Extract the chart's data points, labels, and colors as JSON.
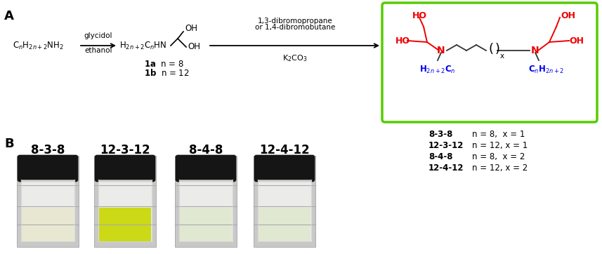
{
  "background_color": "#ffffff",
  "green_box_color": "#55cc00",
  "red_color": "#ee0000",
  "blue_color": "#0000ee",
  "black_color": "#000000",
  "dark_gray": "#333333",
  "arrow1_top": "glycidol",
  "arrow1_bot": "ethanol",
  "arrow2_line1": "1,3-dibromopropane",
  "arrow2_line2": "or 1,4-dibromobutane",
  "arrow2_line3": "K$_2$CO$_3$",
  "vial_labels": [
    "8-3-8",
    "12-3-12",
    "8-4-8",
    "12-4-12"
  ],
  "vial1_liquid": "#e8e8d0",
  "vial2_liquid": "#c8d800",
  "vial3_liquid": "#e0e8d0",
  "vial4_liquid": "#e0e8d0",
  "table_lines_bold": [
    "8-3-8",
    "12-3-12",
    "8-4-8",
    "12-4-12"
  ],
  "table_lines_normal": [
    "n = 8,  x = 1",
    "n = 12, x = 1",
    "n = 8,  x = 2",
    "n = 12, x = 2"
  ]
}
